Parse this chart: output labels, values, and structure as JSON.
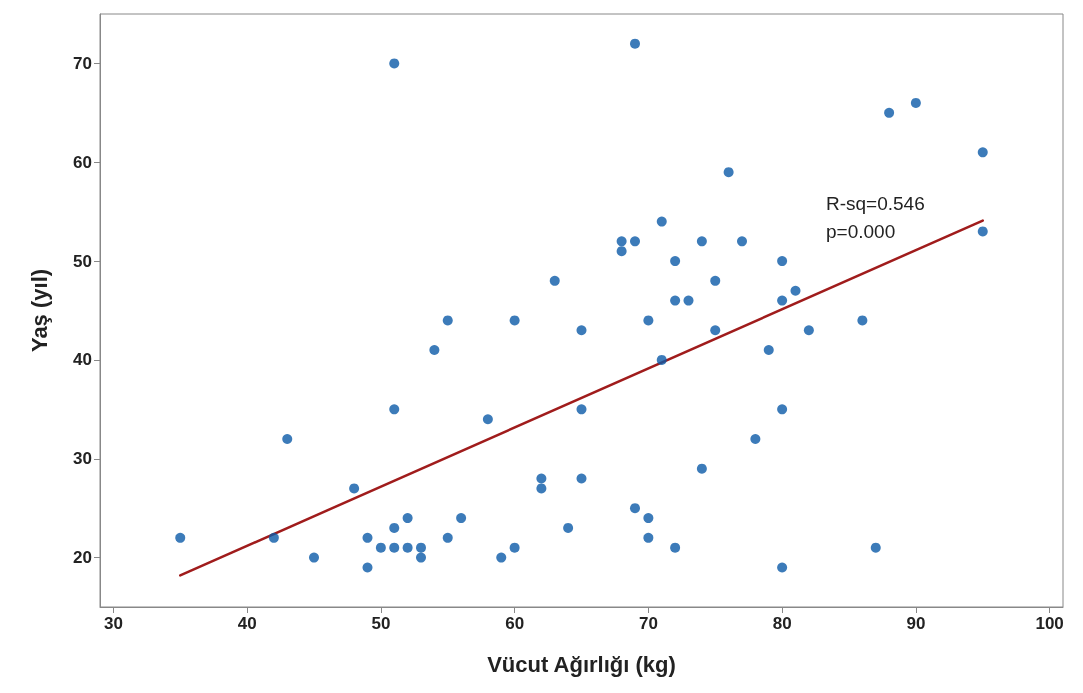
{
  "chart_data": {
    "type": "scatter",
    "xlabel": "Vücut Ağırlığı (kg)",
    "ylabel": "Yaş (yıl)",
    "xlim": [
      29,
      101
    ],
    "ylim": [
      15,
      75
    ],
    "xticks": [
      30,
      40,
      50,
      60,
      70,
      80,
      90,
      100
    ],
    "yticks": [
      20,
      30,
      40,
      50,
      60,
      70
    ],
    "grid": false,
    "marker": "circle",
    "annotations": [
      "R-sq=0.546",
      "p=0.000"
    ],
    "series": [
      {
        "color": "#0b5aa8",
        "x": [
          35,
          42,
          43,
          45,
          48,
          49,
          49,
          50,
          51,
          51,
          51,
          51,
          52,
          52,
          53,
          53,
          54,
          55,
          55,
          56,
          58,
          59,
          60,
          60,
          62,
          62,
          63,
          64,
          65,
          65,
          65,
          68,
          68,
          69,
          69,
          69,
          70,
          70,
          70,
          71,
          71,
          72,
          72,
          72,
          73,
          74,
          74,
          75,
          75,
          76,
          77,
          78,
          79,
          80,
          80,
          80,
          80,
          81,
          82,
          86,
          87,
          88,
          90,
          95,
          95
        ],
        "values": [
          22,
          22,
          32,
          20,
          27,
          22,
          19,
          21,
          70,
          35,
          23,
          21,
          24,
          21,
          21,
          20,
          41,
          44,
          22,
          24,
          34,
          20,
          44,
          21,
          28,
          27,
          48,
          23,
          43,
          35,
          28,
          52,
          51,
          72,
          52,
          25,
          44,
          24,
          22,
          54,
          40,
          50,
          46,
          21,
          46,
          52,
          29,
          48,
          43,
          59,
          52,
          32,
          41,
          50,
          46,
          35,
          19,
          47,
          43,
          44,
          21,
          65,
          66,
          61,
          53
        ]
      },
      {
        "type": "line",
        "color": "#a01c1c",
        "x": [
          35,
          95
        ],
        "values": [
          18.2,
          54.1
        ],
        "line_style": "solid",
        "marker": "none"
      }
    ]
  }
}
